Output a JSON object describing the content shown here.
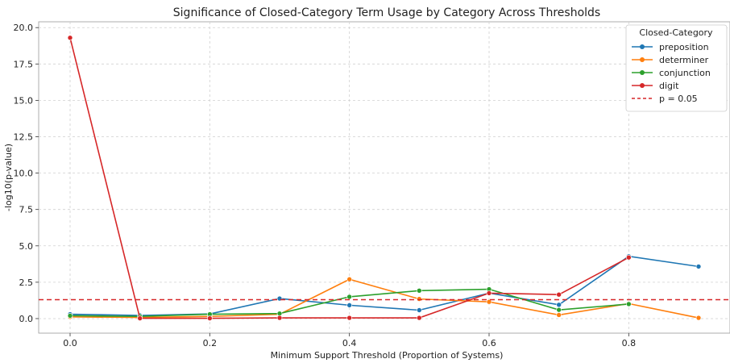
{
  "chart_data": {
    "type": "line",
    "title": "Significance of Closed-Category Term Usage by Category Across Thresholds",
    "xlabel": "Minimum Support Threshold (Proportion of Systems)",
    "ylabel": "-log10(p-value)",
    "xlim": [
      -0.045,
      0.945
    ],
    "ylim": [
      -1.0,
      20.4
    ],
    "x_ticks": [
      0.0,
      0.2,
      0.4,
      0.6,
      0.8
    ],
    "x_tick_labels": [
      "0.0",
      "0.2",
      "0.4",
      "0.6",
      "0.8"
    ],
    "y_ticks": [
      0.0,
      2.5,
      5.0,
      7.5,
      10.0,
      12.5,
      15.0,
      17.5,
      20.0
    ],
    "y_tick_labels": [
      "0.0",
      "2.5",
      "5.0",
      "7.5",
      "10.0",
      "12.5",
      "15.0",
      "17.5",
      "20.0"
    ],
    "grid": true,
    "legend_title": "Closed-Category",
    "legend_position": "top-right",
    "x": [
      0.0,
      0.1,
      0.2,
      0.3,
      0.4,
      0.5,
      0.6,
      0.7,
      0.8,
      0.9
    ],
    "series": [
      {
        "name": "preposition",
        "color": "#1f77b4",
        "values": [
          0.3,
          0.22,
          0.32,
          1.38,
          0.92,
          0.58,
          1.75,
          0.95,
          4.28,
          3.58
        ]
      },
      {
        "name": "determiner",
        "color": "#ff7f0e",
        "values": [
          0.12,
          0.08,
          0.15,
          0.3,
          2.7,
          1.35,
          1.15,
          0.25,
          1.03,
          0.05
        ]
      },
      {
        "name": "conjunction",
        "color": "#2ca02c",
        "values": [
          0.2,
          0.15,
          0.3,
          0.35,
          1.5,
          1.92,
          2.02,
          0.6,
          1.0,
          null
        ]
      },
      {
        "name": "digit",
        "color": "#d62728",
        "values": [
          19.3,
          0.02,
          0.02,
          0.05,
          0.05,
          0.05,
          1.75,
          1.65,
          4.2,
          null
        ]
      }
    ],
    "reference_line": {
      "name": "p = 0.05",
      "y": 1.30103,
      "color": "#d62728",
      "style": "dashed"
    }
  }
}
